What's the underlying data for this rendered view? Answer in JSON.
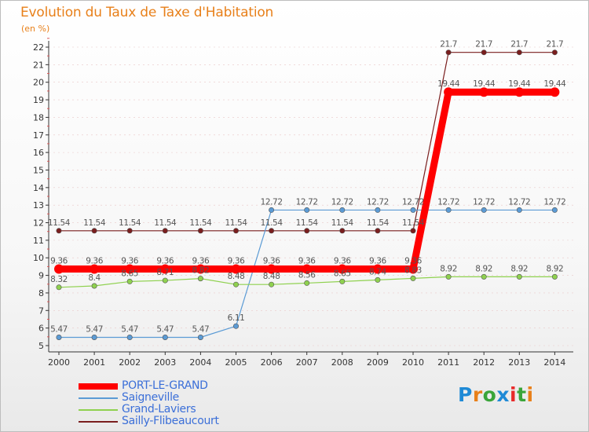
{
  "title": "Evolution du Taux de Taxe d'Habitation",
  "unit_label": "(en %)",
  "logo": {
    "text": "Proxiti",
    "letters": [
      {
        "ch": "P",
        "color": "#1f8ad6"
      },
      {
        "ch": "r",
        "color": "#e8801a"
      },
      {
        "ch": "o",
        "color": "#3aa53a"
      },
      {
        "ch": "x",
        "color": "#1f8ad6"
      },
      {
        "ch": "i",
        "color": "#e82a2a"
      },
      {
        "ch": "t",
        "color": "#3aa53a"
      },
      {
        "ch": "i",
        "color": "#e8801a"
      }
    ]
  },
  "colors": {
    "title": "#e8801a",
    "axis": "#333333",
    "grid": "#d85a5a",
    "legend_text": "#3b6fd8"
  },
  "chart_data": {
    "type": "line",
    "title": "Evolution du Taux de Taxe d'Habitation",
    "ylabel": "(en %)",
    "xlabel": "",
    "ylim": [
      5,
      22
    ],
    "yticks": [
      5,
      6,
      7,
      8,
      9,
      10,
      11,
      12,
      13,
      14,
      15,
      16,
      17,
      18,
      19,
      20,
      21,
      22
    ],
    "categories": [
      "2000",
      "2001",
      "2002",
      "2003",
      "2004",
      "2005",
      "2006",
      "2007",
      "2008",
      "2009",
      "2010",
      "2011",
      "2012",
      "2013",
      "2014"
    ],
    "series": [
      {
        "name": "Sailly-Flibeaucourt",
        "color": "#7a1e1e",
        "width": 1.2,
        "values": [
          11.54,
          11.54,
          11.54,
          11.54,
          11.54,
          11.54,
          11.54,
          11.54,
          11.54,
          11.54,
          11.54,
          21.7,
          21.7,
          21.7,
          21.7
        ],
        "labels": [
          "11.54",
          "11.54",
          "11.54",
          "11.54",
          "11.54",
          "11.54",
          "11.54",
          "11.54",
          "11.54",
          "11.54",
          "11.54",
          "21.7",
          "21.7",
          "21.7",
          "21.7"
        ]
      },
      {
        "name": "Saigneville",
        "color": "#5b9bd5",
        "width": 1.2,
        "values": [
          5.47,
          5.47,
          5.47,
          5.47,
          5.47,
          6.11,
          12.72,
          12.72,
          12.72,
          12.72,
          12.72,
          12.72,
          12.72,
          12.72,
          12.72
        ],
        "labels": [
          "5.47",
          "5.47",
          "5.47",
          "5.47",
          "5.47",
          "6.11",
          "12.72",
          "12.72",
          "12.72",
          "12.72",
          "12.72",
          "12.72",
          "12.72",
          "12.72",
          "12.72"
        ]
      },
      {
        "name": "Grand-Laviers",
        "color": "#8fd14f",
        "width": 1.2,
        "values": [
          8.32,
          8.4,
          8.65,
          8.71,
          8.82,
          8.48,
          8.48,
          8.56,
          8.65,
          8.74,
          8.83,
          8.92,
          8.92,
          8.92,
          8.92
        ],
        "labels": [
          "8.32",
          "8.4",
          "8.65",
          "8.71",
          "8.82",
          "8.48",
          "8.48",
          "8.56",
          "8.65",
          "8.74",
          "8.83",
          "8.92",
          "8.92",
          "8.92",
          "8.92"
        ]
      },
      {
        "name": "PORT-LE-GRAND",
        "color": "#ff0000",
        "width": 9,
        "values": [
          9.36,
          9.36,
          9.36,
          9.36,
          9.36,
          9.36,
          9.36,
          9.36,
          9.36,
          9.36,
          9.36,
          19.44,
          19.44,
          19.44,
          19.44
        ],
        "labels": [
          "9.36",
          "9.36",
          "9.36",
          "9.36",
          "9.36",
          "9.36",
          "9.36",
          "9.36",
          "9.36",
          "9.36",
          "9.36",
          "19.44",
          "19.44",
          "19.44",
          "19.44"
        ]
      }
    ],
    "legend": [
      "PORT-LE-GRAND",
      "Saigneville",
      "Grand-Laviers",
      "Sailly-Flibeaucourt"
    ],
    "legend_position": "bottom-left",
    "grid": true
  }
}
